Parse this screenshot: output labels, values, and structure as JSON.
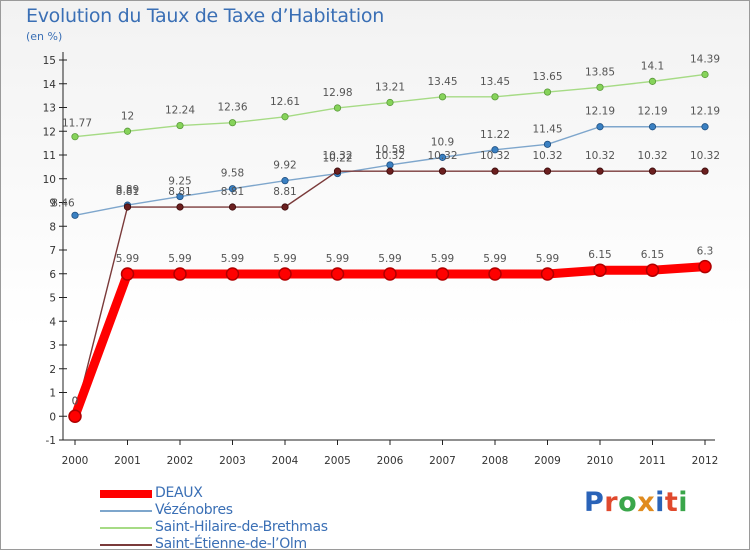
{
  "header": {
    "title": "Evolution du Taux de Taxe d’Habitation",
    "subtitle": "(en %)"
  },
  "logo": {
    "text": "Proxiti",
    "letter_colors": [
      "#2a63b8",
      "#e0492d",
      "#3aa64a",
      "#e08b1f",
      "#2a63b8",
      "#e0492d",
      "#3aa64a"
    ]
  },
  "chart_data": {
    "type": "line",
    "title": "Evolution du Taux de Taxe d’Habitation",
    "subtitle": "(en %)",
    "x": [
      "2000",
      "2001",
      "2002",
      "2003",
      "2004",
      "2005",
      "2006",
      "2007",
      "2008",
      "2009",
      "2010",
      "2011",
      "2012"
    ],
    "ylim": [
      -1,
      15
    ],
    "yticks": [
      "-1",
      "0",
      "1",
      "2",
      "3",
      "4",
      "5",
      "6",
      "7",
      "8",
      "9",
      "10",
      "11",
      "12",
      "13",
      "14",
      "15"
    ],
    "grid": false,
    "legend_position": "bottom-left",
    "series": [
      {
        "name": "DEAUX",
        "color": "#ff0000",
        "marker_edge": "#b00000",
        "emphasis": "thick",
        "values": [
          0,
          5.99,
          5.99,
          5.99,
          5.99,
          5.99,
          5.99,
          5.99,
          5.99,
          5.99,
          6.15,
          6.15,
          6.3
        ],
        "labels": [
          "0",
          "5.99",
          "5.99",
          "5.99",
          "5.99",
          "5.99",
          "5.99",
          "5.99",
          "5.99",
          "5.99",
          "6.15",
          "6.15",
          "6.3"
        ]
      },
      {
        "name": "Vézénobres",
        "color": "#7ea6cc",
        "marker_color": "#3a80c2",
        "marker_edge": "#1f4f80",
        "emphasis": "thin",
        "values": [
          8.46,
          8.89,
          9.25,
          9.58,
          9.92,
          10.22,
          10.58,
          10.9,
          11.22,
          11.45,
          12.19,
          12.19,
          12.19
        ],
        "labels": [
          "8.46",
          "8.89",
          "9.25",
          "9.58",
          "9.92",
          "10.22",
          "10.58",
          "10.9",
          "11.22",
          "11.45",
          "12.19",
          "12.19",
          "12.19"
        ]
      },
      {
        "name": "Saint-Hilaire-de-Brethmas",
        "color": "#a6db85",
        "marker_color": "#86d35a",
        "marker_edge": "#5a9a3a",
        "emphasis": "thin",
        "values": [
          11.77,
          12,
          12.24,
          12.36,
          12.61,
          12.98,
          13.21,
          13.45,
          13.45,
          13.65,
          13.85,
          14.1,
          14.39
        ],
        "labels": [
          "11.77",
          "12",
          "12.24",
          "12.36",
          "12.61",
          "12.98",
          "13.21",
          "13.45",
          "13.45",
          "13.65",
          "13.85",
          "14.1",
          "14.39"
        ]
      },
      {
        "name": "Saint-Étienne-de-l’Olm",
        "color": "#7a3a3a",
        "marker_color": "#6b1f1f",
        "marker_edge": "#3a0a0a",
        "emphasis": "thin",
        "values": [
          0,
          8.81,
          8.81,
          8.81,
          8.81,
          10.32,
          10.32,
          10.32,
          10.32,
          10.32,
          10.32,
          10.32,
          10.32
        ],
        "labels": [
          "0",
          "8.81",
          "8.81",
          "8.81",
          "8.81",
          "10.32",
          "10.32",
          "10.32",
          "10.32",
          "10.32",
          "10.32",
          "10.32",
          "10.32"
        ]
      }
    ]
  }
}
